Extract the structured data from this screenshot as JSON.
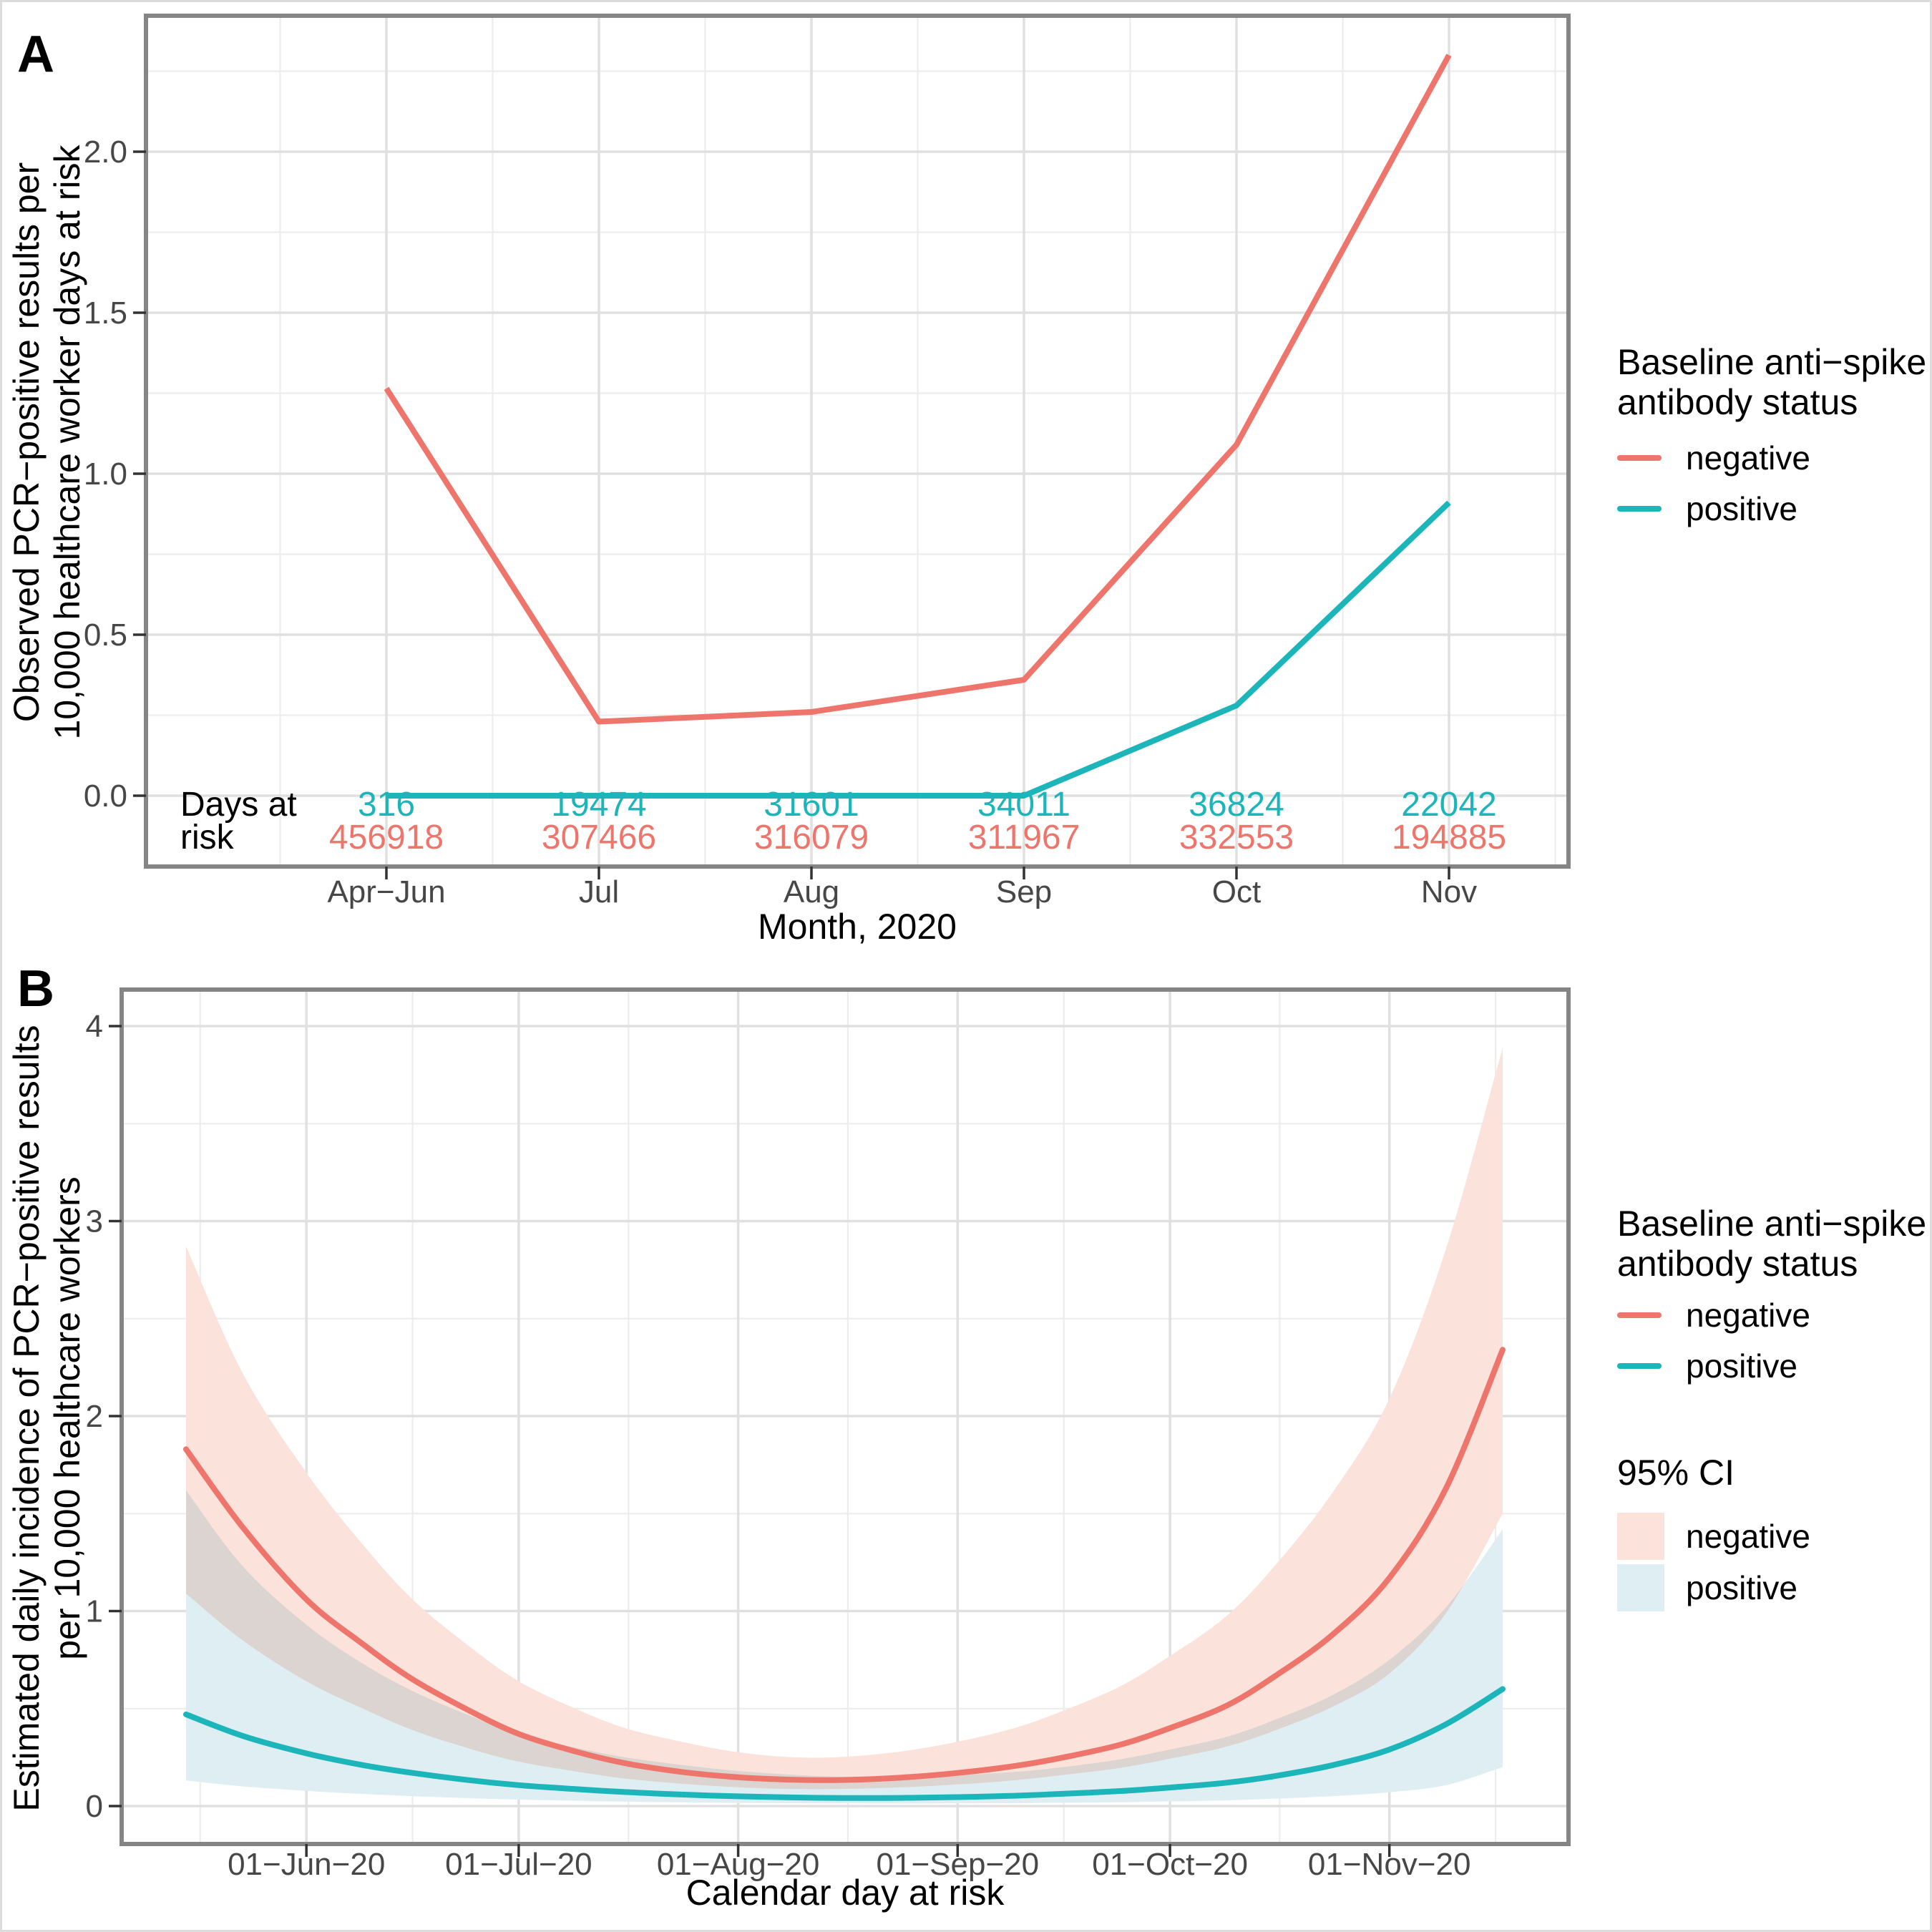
{
  "colors": {
    "negative": "#EE756B",
    "positive": "#1CB5BA",
    "negative_fill": "#FBE3DC",
    "positive_fill": "#DFEEF2",
    "grid_major": "#E0E0E0",
    "grid_minor": "#EDEDED",
    "panel_border": "#858585",
    "tick_mark": "#333333",
    "tick_label": "#474747",
    "axis_text": "#000000"
  },
  "legend_a": {
    "title_lines": [
      "Baseline anti−spike",
      "antibody status"
    ],
    "items": [
      {
        "label": "negative",
        "color": "negative"
      },
      {
        "label": "positive",
        "color": "positive"
      }
    ]
  },
  "legend_b_status": {
    "title_lines": [
      "Baseline anti−spike",
      "antibody status"
    ],
    "items": [
      {
        "label": "negative",
        "color": "negative"
      },
      {
        "label": "positive",
        "color": "positive"
      }
    ]
  },
  "legend_b_ci": {
    "title": "95% CI",
    "items": [
      {
        "label": "negative",
        "color": "negative_fill"
      },
      {
        "label": "positive",
        "color": "positive_fill"
      }
    ]
  },
  "chart_data": [
    {
      "type": "line",
      "panel": "A",
      "title": "",
      "xlabel": "Month, 2020",
      "ylabel": "Observed PCR−positive results per 10,000 healthcare worker days at risk",
      "y_label_lines": [
        "Observed PCR−positive results per",
        "10,000 healthcare worker days at risk"
      ],
      "categories": [
        "Apr−Jun",
        "Jul",
        "Aug",
        "Sep",
        "Oct",
        "Nov"
      ],
      "y_ticks": [
        0.0,
        0.5,
        1.0,
        1.5,
        2.0
      ],
      "y_tick_labels": [
        "0.0",
        "0.5",
        "1.0",
        "1.5",
        "2.0"
      ],
      "y_minor_ticks": [
        0.25,
        0.75,
        1.25,
        1.75,
        2.25
      ],
      "ylim": [
        -0.22,
        2.42
      ],
      "grid": true,
      "legend_position": "right",
      "series": [
        {
          "name": "negative",
          "values": [
            1.265,
            0.23,
            0.26,
            0.36,
            1.09,
            2.3
          ]
        },
        {
          "name": "positive",
          "values": [
            0.0,
            0.0,
            0.0,
            0.0,
            0.28,
            0.91
          ]
        }
      ],
      "days_at_risk": {
        "label_lines": [
          "Days at",
          "risk"
        ],
        "rows": [
          {
            "name": "positive",
            "values": [
              "316",
              "19474",
              "31601",
              "34011",
              "36824",
              "22042"
            ]
          },
          {
            "name": "negative",
            "values": [
              "456918",
              "307466",
              "316079",
              "311967",
              "332553",
              "194885"
            ]
          }
        ]
      }
    },
    {
      "type": "line+ribbon",
      "panel": "B",
      "title": "",
      "xlabel": "Calendar day at risk",
      "ylabel": "Estimated daily incidence of PCR−positive results per 10,000 healthcare workers",
      "y_label_lines": [
        "Estimated daily incidence of PCR−positive results",
        "per 10,000 healthcare workers"
      ],
      "x_tick_labels": [
        "01−Jun−20",
        "01−Jul−20",
        "01−Aug−20",
        "01−Sep−20",
        "01−Oct−20",
        "01−Nov−20"
      ],
      "x_tick_days": [
        17,
        47,
        78,
        109,
        139,
        170
      ],
      "x_minor_days": [
        2,
        32,
        62.5,
        93.5,
        124,
        154.5,
        185
      ],
      "day_range": [
        0,
        186
      ],
      "y_ticks": [
        0,
        1,
        2,
        3,
        4
      ],
      "y_tick_labels": [
        "0",
        "1",
        "2",
        "3",
        "4"
      ],
      "y_minor_ticks": [
        0.5,
        1.5,
        2.5,
        3.5
      ],
      "ylim": [
        -0.19,
        4.38
      ],
      "grid": true,
      "legend_position": "right",
      "days": [
        0,
        8,
        17,
        25,
        32,
        40,
        47,
        55,
        62,
        70,
        78,
        86,
        93,
        101,
        109,
        117,
        124,
        132,
        139,
        147,
        154,
        162,
        170,
        178,
        186
      ],
      "series": [
        {
          "name": "negative",
          "values": [
            1.83,
            1.43,
            1.06,
            0.83,
            0.65,
            0.49,
            0.37,
            0.28,
            0.22,
            0.175,
            0.148,
            0.135,
            0.134,
            0.146,
            0.17,
            0.205,
            0.25,
            0.315,
            0.4,
            0.515,
            0.67,
            0.88,
            1.17,
            1.63,
            2.34
          ]
        },
        {
          "name": "positive",
          "values": [
            0.47,
            0.36,
            0.27,
            0.21,
            0.17,
            0.133,
            0.107,
            0.087,
            0.072,
            0.059,
            0.05,
            0.044,
            0.041,
            0.042,
            0.046,
            0.053,
            0.063,
            0.077,
            0.095,
            0.12,
            0.155,
            0.21,
            0.29,
            0.42,
            0.6
          ]
        }
      ],
      "ribbons": [
        {
          "name": "negative",
          "upper": [
            2.87,
            2.22,
            1.71,
            1.34,
            1.06,
            0.82,
            0.64,
            0.5,
            0.4,
            0.33,
            0.276,
            0.25,
            0.253,
            0.28,
            0.33,
            0.4,
            0.49,
            0.615,
            0.77,
            0.975,
            1.24,
            1.61,
            2.09,
            2.86,
            3.89
          ],
          "lower": [
            1.09,
            0.85,
            0.64,
            0.5,
            0.39,
            0.295,
            0.228,
            0.178,
            0.141,
            0.115,
            0.096,
            0.087,
            0.088,
            0.096,
            0.111,
            0.132,
            0.16,
            0.196,
            0.243,
            0.305,
            0.39,
            0.51,
            0.68,
            0.99,
            1.5
          ]
        },
        {
          "name": "positive",
          "upper": [
            1.62,
            1.23,
            0.93,
            0.73,
            0.59,
            0.465,
            0.37,
            0.3,
            0.25,
            0.211,
            0.18,
            0.16,
            0.15,
            0.15,
            0.158,
            0.175,
            0.2,
            0.24,
            0.29,
            0.355,
            0.445,
            0.57,
            0.75,
            1.02,
            1.42
          ],
          "lower": [
            0.131,
            0.101,
            0.078,
            0.062,
            0.051,
            0.0405,
            0.033,
            0.027,
            0.0225,
            0.019,
            0.0162,
            0.0144,
            0.0134,
            0.0132,
            0.0137,
            0.0149,
            0.0168,
            0.0195,
            0.0238,
            0.0295,
            0.038,
            0.051,
            0.071,
            0.107,
            0.2
          ]
        }
      ]
    }
  ]
}
